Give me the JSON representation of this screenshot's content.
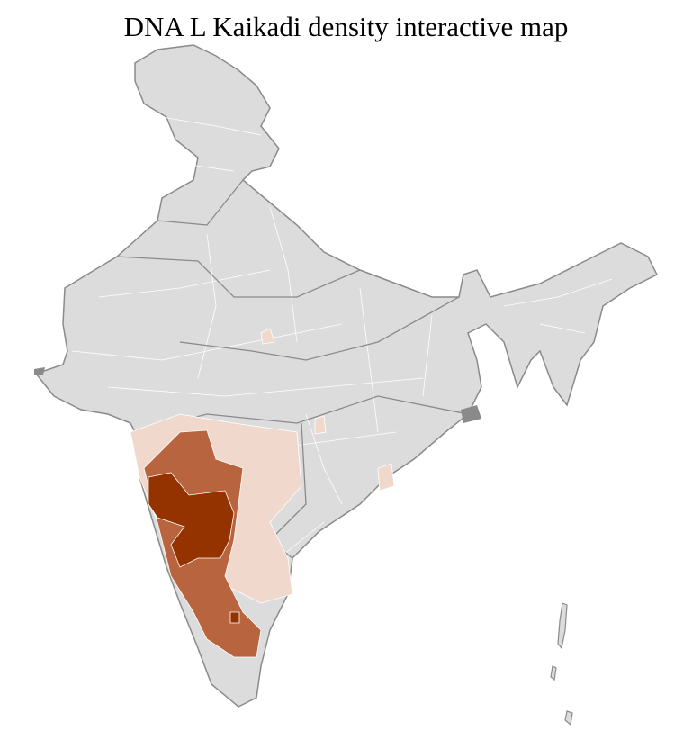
{
  "title": "DNA L Kaikadi density interactive map",
  "colors": {
    "base": "#dcdcdc",
    "state_border": "#8a8a8a",
    "district_border": "#ffffff",
    "low": "#f0d9cc",
    "medium": "#b8653f",
    "high": "#943200"
  }
}
